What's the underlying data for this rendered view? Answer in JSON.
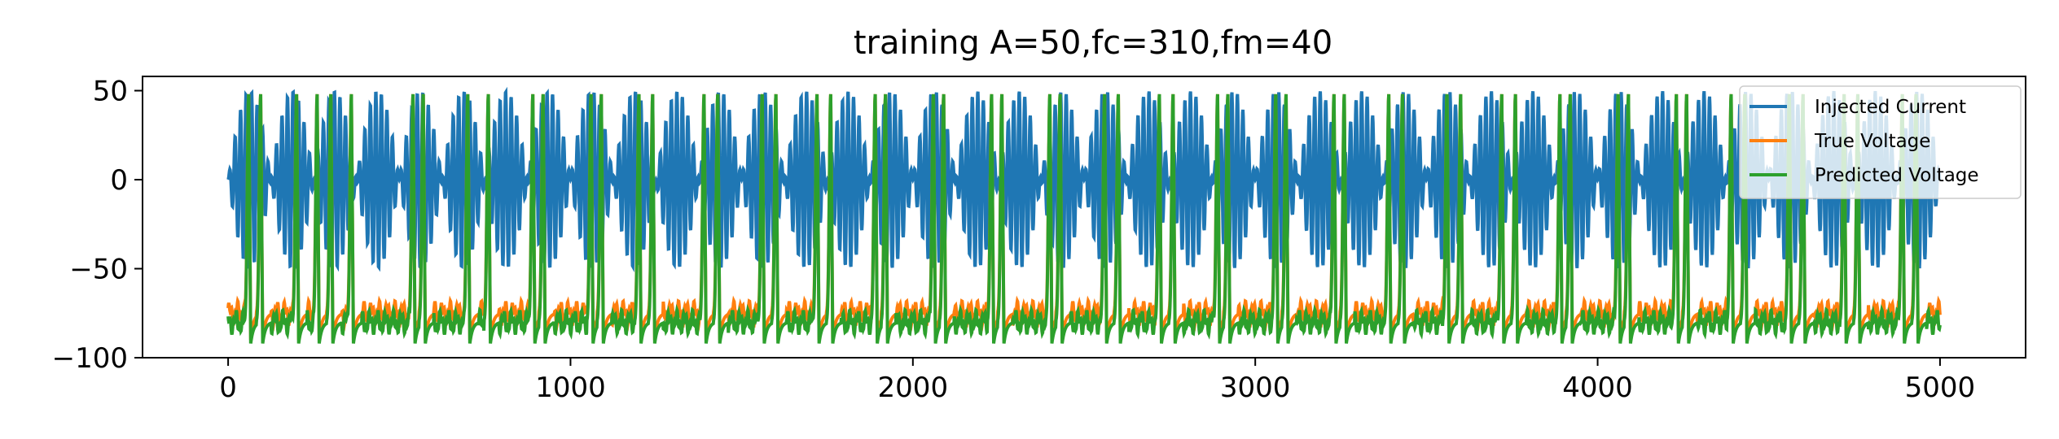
{
  "chart_data": {
    "type": "line",
    "title": "training A=50,fc=310,fm=40",
    "xlabel": "",
    "ylabel": "",
    "xlim": [
      -250,
      5250
    ],
    "ylim": [
      -100,
      58
    ],
    "xticks": [
      0,
      1000,
      2000,
      3000,
      4000,
      5000
    ],
    "xtick_labels": [
      "0",
      "1000",
      "2000",
      "3000",
      "4000",
      "5000"
    ],
    "yticks": [
      50,
      0,
      -50,
      -100
    ],
    "ytick_labels": [
      "50",
      "0",
      "−50",
      "−100"
    ],
    "grid": false,
    "legend_position": "top-right",
    "colors": {
      "Injected Current": "#1f77b4",
      "True Voltage": "#ff7f0e",
      "Predicted Voltage": "#2ca02c"
    },
    "legend": [
      "Injected Current",
      "True Voltage",
      "Predicted Voltage"
    ],
    "series": [
      {
        "name": "Injected Current",
        "description_values": "amplitude-modulated sinusoid, A=50, carrier 310, modulation 40",
        "x_range": [
          0,
          5000
        ],
        "y_range": [
          -50,
          50
        ],
        "envelope_period_samples": 125,
        "carrier_period_samples": 16.13
      },
      {
        "name": "True Voltage",
        "x_range": [
          0,
          5000
        ],
        "baseline": -75,
        "spike_peak": 48,
        "spike_trough": -90,
        "spike_times": [
          60,
          95,
          200,
          260,
          300,
          360,
          540,
          570,
          700,
          760,
          890,
          920,
          1060,
          1090,
          1200,
          1240,
          1390,
          1430,
          1560,
          1600,
          1720,
          1760,
          1890,
          1920,
          2060,
          2090,
          2230,
          2260,
          2400,
          2430,
          2560,
          2600,
          2720,
          2760,
          2890,
          2920,
          3060,
          3090,
          3230,
          3260,
          3390,
          3430,
          3560,
          3600,
          3720,
          3760,
          3890,
          3920,
          4060,
          4090,
          4230,
          4260,
          4390,
          4430,
          4560,
          4600,
          4720,
          4760,
          4890,
          4930
        ]
      },
      {
        "name": "Predicted Voltage",
        "x_range": [
          0,
          5000
        ],
        "baseline": -80,
        "spike_peak": 48,
        "spike_trough": -92,
        "spike_times": [
          60,
          95,
          200,
          260,
          300,
          360,
          540,
          570,
          700,
          760,
          890,
          920,
          1060,
          1090,
          1200,
          1240,
          1390,
          1430,
          1560,
          1600,
          1720,
          1760,
          1890,
          1920,
          2060,
          2090,
          2230,
          2260,
          2400,
          2430,
          2560,
          2600,
          2720,
          2760,
          2890,
          2920,
          3060,
          3090,
          3230,
          3260,
          3390,
          3430,
          3560,
          3600,
          3720,
          3760,
          3890,
          3920,
          4060,
          4090,
          4230,
          4260,
          4390,
          4430,
          4560,
          4600,
          4720,
          4760,
          4890,
          4930
        ]
      }
    ]
  }
}
